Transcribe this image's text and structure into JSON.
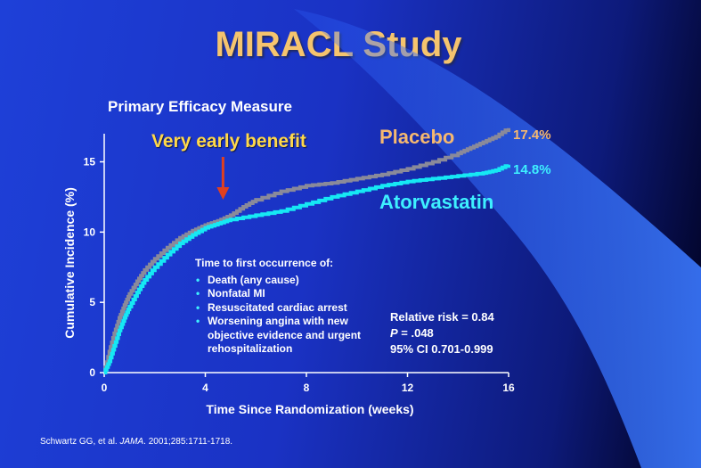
{
  "slide": {
    "title": "MIRACL Study",
    "subtitle": "Primary Efficacy Measure",
    "footer": {
      "authors": "Schwartz GG, et al. ",
      "journal": "JAMA",
      "citation": ". 2001;285:1711-1718."
    }
  },
  "annotations": {
    "early_benefit": "Very early benefit",
    "placebo_label": "Placebo",
    "atorvastatin_label": "Atorvastatin",
    "placebo_end": "17.4%",
    "atorvastatin_end": "14.8%"
  },
  "endpoints_box": {
    "heading": "Time to first occurrence of:",
    "items": [
      "Death (any cause)",
      "Nonfatal MI",
      "Resuscitated cardiac arrest",
      "Worsening angina with new objective evidence and urgent rehospitalization"
    ]
  },
  "stats": {
    "line1": "Relative risk = 0.84",
    "p_label": "P",
    "p_value": " = .048",
    "line3": "95% CI 0.701-0.999"
  },
  "colors": {
    "placebo": "#8a8a9a",
    "atorvastatin": "#16e8f4",
    "arrow": "#e04020",
    "axis": "#ffffff"
  },
  "chart_data": {
    "type": "line",
    "title": "Primary Efficacy Measure",
    "xlabel": "Time Since Randomization (weeks)",
    "ylabel": "Cumulative Incidence (%)",
    "xlim": [
      0,
      16
    ],
    "ylim": [
      0,
      17
    ],
    "xticks": [
      0,
      4,
      8,
      12,
      16
    ],
    "yticks": [
      0,
      5,
      10,
      15
    ],
    "series": [
      {
        "name": "Placebo",
        "x": [
          0,
          0.2,
          0.4,
          0.6,
          0.8,
          1.0,
          1.3,
          1.6,
          2.0,
          2.5,
          3.0,
          3.5,
          4.0,
          4.5,
          5.0,
          5.5,
          6.0,
          7.0,
          8.0,
          9.0,
          10.0,
          11.0,
          12.0,
          13.0,
          14.0,
          14.5,
          15.0,
          15.5,
          16.0
        ],
        "y": [
          0,
          1.5,
          2.8,
          3.9,
          4.8,
          5.6,
          6.5,
          7.3,
          8.1,
          8.9,
          9.6,
          10.1,
          10.5,
          10.8,
          11.2,
          11.8,
          12.3,
          12.9,
          13.3,
          13.5,
          13.8,
          14.1,
          14.5,
          15.0,
          15.6,
          16.0,
          16.4,
          16.8,
          17.4
        ]
      },
      {
        "name": "Atorvastatin",
        "x": [
          0,
          0.2,
          0.4,
          0.6,
          0.8,
          1.0,
          1.3,
          1.6,
          2.0,
          2.5,
          3.0,
          3.5,
          4.0,
          4.5,
          5.0,
          6.0,
          7.0,
          8.0,
          9.0,
          10.0,
          11.0,
          12.0,
          13.0,
          14.0,
          15.0,
          15.5,
          16.0
        ],
        "y": [
          0,
          0.8,
          1.9,
          3.0,
          3.9,
          4.7,
          5.7,
          6.6,
          7.5,
          8.4,
          9.2,
          9.8,
          10.3,
          10.6,
          10.9,
          11.2,
          11.5,
          12.0,
          12.5,
          12.9,
          13.3,
          13.6,
          13.8,
          14.0,
          14.2,
          14.4,
          14.8
        ]
      }
    ],
    "annotations": [
      {
        "text": "Very early benefit",
        "x": 4.7,
        "type": "arrow"
      }
    ],
    "grid": false,
    "legend": "inline labels at right"
  }
}
